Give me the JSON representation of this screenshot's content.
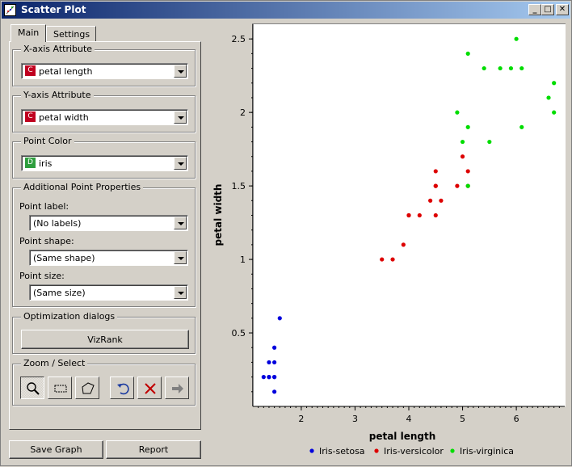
{
  "window": {
    "title": "Scatter Plot"
  },
  "tabs": [
    {
      "label": "Main",
      "active": true
    },
    {
      "label": "Settings",
      "active": false
    }
  ],
  "x_axis": {
    "group_title": "X-axis Attribute",
    "badge": "C",
    "badge_color": "#c00020",
    "value": "petal length"
  },
  "y_axis": {
    "group_title": "Y-axis Attribute",
    "badge": "C",
    "badge_color": "#c00020",
    "value": "petal width"
  },
  "point_color": {
    "group_title": "Point Color",
    "badge": "D",
    "badge_color": "#2e9e3e",
    "value": "iris"
  },
  "additional": {
    "group_title": "Additional Point Properties",
    "label_caption": "Point label:",
    "label_value": "(No labels)",
    "shape_caption": "Point shape:",
    "shape_value": "(Same shape)",
    "size_caption": "Point size:",
    "size_value": "(Same size)"
  },
  "optimization": {
    "group_title": "Optimization dialogs",
    "vizrank_label": "VizRank"
  },
  "zoom": {
    "group_title": "Zoom / Select",
    "tools": [
      "zoom-icon",
      "rectangle-select-icon",
      "polygon-select-icon",
      "undo-icon",
      "remove-selection-icon",
      "send-selection-icon"
    ]
  },
  "bottom": {
    "save_label": "Save Graph",
    "report_label": "Report"
  },
  "chart_data": {
    "type": "scatter",
    "xlabel": "petal length",
    "ylabel": "petal width",
    "xlim": [
      1.1,
      6.9
    ],
    "ylim": [
      0.0,
      2.6
    ],
    "xticks": [
      2,
      3,
      4,
      5,
      6
    ],
    "yticks": [
      0.5,
      1,
      1.5,
      2,
      2.5
    ],
    "xtick_labels": [
      "2",
      "3",
      "4",
      "5",
      "6"
    ],
    "ytick_labels": [
      "0.5",
      "1",
      "1.5",
      "2",
      "2.5"
    ],
    "grid": false,
    "legend_position": "bottom",
    "series": [
      {
        "name": "Iris-setosa",
        "color": "#0000dd",
        "points": [
          [
            1.3,
            0.2
          ],
          [
            1.4,
            0.2
          ],
          [
            1.5,
            0.2
          ],
          [
            1.6,
            0.6
          ],
          [
            1.5,
            0.4
          ],
          [
            1.4,
            0.3
          ],
          [
            1.5,
            0.1
          ],
          [
            1.5,
            0.2
          ],
          [
            1.4,
            0.2
          ],
          [
            1.5,
            0.3
          ]
        ]
      },
      {
        "name": "Iris-versicolor",
        "color": "#dd0000",
        "points": [
          [
            3.5,
            1.0
          ],
          [
            3.7,
            1.0
          ],
          [
            3.9,
            1.1
          ],
          [
            4.0,
            1.3
          ],
          [
            4.0,
            1.3
          ],
          [
            4.2,
            1.3
          ],
          [
            4.4,
            1.4
          ],
          [
            4.5,
            1.3
          ],
          [
            4.5,
            1.5
          ],
          [
            4.5,
            1.6
          ],
          [
            4.6,
            1.4
          ],
          [
            4.9,
            1.5
          ],
          [
            5.0,
            1.7
          ],
          [
            5.1,
            1.6
          ],
          [
            5.1,
            1.5
          ],
          [
            4.5,
            1.5
          ]
        ]
      },
      {
        "name": "Iris-virginica",
        "color": "#00dd00",
        "points": [
          [
            4.9,
            2.0
          ],
          [
            5.0,
            1.8
          ],
          [
            5.1,
            2.4
          ],
          [
            5.1,
            1.9
          ],
          [
            5.1,
            1.5
          ],
          [
            5.4,
            2.3
          ],
          [
            5.5,
            1.8
          ],
          [
            5.7,
            2.3
          ],
          [
            5.9,
            2.3
          ],
          [
            6.0,
            2.5
          ],
          [
            6.1,
            2.3
          ],
          [
            6.1,
            1.9
          ],
          [
            6.6,
            2.1
          ],
          [
            6.7,
            2.2
          ],
          [
            6.7,
            2.0
          ]
        ]
      }
    ]
  }
}
